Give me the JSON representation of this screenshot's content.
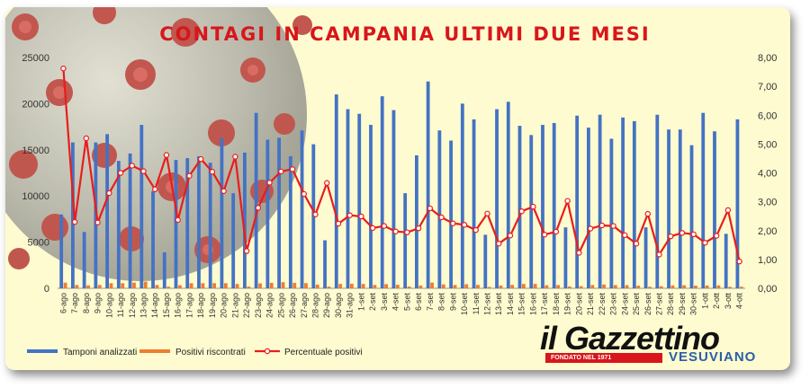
{
  "chart_data": {
    "type": "bar",
    "title": "CONTAGI IN CAMPANIA ULTIMI DUE MESI",
    "categories": [
      "6-ago",
      "7-ago",
      "8-ago",
      "9-ago",
      "10-ago",
      "11-ago",
      "12-ago",
      "13-ago",
      "14-ago",
      "15-ago",
      "16-ago",
      "17-ago",
      "18-ago",
      "19-ago",
      "20-ago",
      "21-ago",
      "22-ago",
      "23-ago",
      "24-ago",
      "25-ago",
      "26-ago",
      "27-ago",
      "28-ago",
      "29-ago",
      "30-ago",
      "31-ago",
      "1-set",
      "2-set",
      "3-set",
      "4-set",
      "5-set",
      "6-set",
      "7-set",
      "8-set",
      "9-set",
      "10-set",
      "11-set",
      "12-set",
      "13-set",
      "14-set",
      "15-set",
      "16-set",
      "17-set",
      "18-set",
      "19-set",
      "20-set",
      "21-set",
      "22-set",
      "23-set",
      "24-set",
      "25-set",
      "26-set",
      "27-set",
      "28-set",
      "29-set",
      "30-set",
      "1-ott",
      "2-ott",
      "3-ott",
      "4-ott"
    ],
    "y_left": {
      "min": 0,
      "max": 25000,
      "ticks": [
        "0",
        "5000",
        "10000",
        "15000",
        "20000",
        "25000"
      ]
    },
    "y_right": {
      "min": 0,
      "max": 8,
      "ticks": [
        "0,00",
        "1,00",
        "2,00",
        "3,00",
        "4,00",
        "5,00",
        "6,00",
        "7,00",
        "8,00"
      ]
    },
    "series": [
      {
        "name": "Tamponi analizzati",
        "type": "bar",
        "axis": "left",
        "color": "#4472c4",
        "values": [
          8000,
          15800,
          6100,
          15800,
          16700,
          13800,
          14600,
          17700,
          10500,
          3900,
          13900,
          14100,
          14300,
          13600,
          16300,
          10300,
          14700,
          19000,
          16100,
          16300,
          14300,
          17100,
          15600,
          5200,
          21000,
          19400,
          18900,
          17700,
          20800,
          19300,
          10300,
          14400,
          22400,
          17100,
          16000,
          20000,
          18300,
          5800,
          19400,
          20200,
          17600,
          16600,
          17700,
          17900,
          6600,
          18700,
          17400,
          18800,
          16200,
          18500,
          18100,
          6600,
          18800,
          17200,
          17200,
          15500,
          19000,
          17000,
          5900,
          18300
        ]
      },
      {
        "name": "Positivi riscontrati",
        "type": "bar",
        "axis": "left",
        "color": "#ed7d31",
        "values": [
          610,
          360,
          320,
          360,
          550,
          550,
          620,
          720,
          360,
          180,
          330,
          550,
          550,
          550,
          550,
          470,
          190,
          530,
          590,
          660,
          590,
          560,
          400,
          190,
          470,
          490,
          470,
          370,
          450,
          380,
          200,
          300,
          620,
          420,
          360,
          440,
          370,
          150,
          300,
          370,
          470,
          470,
          330,
          350,
          200,
          230,
          360,
          410,
          350,
          340,
          280,
          170,
          220,
          310,
          330,
          290,
          300,
          310,
          160,
          170
        ]
      },
      {
        "name": "Percentuale positivi",
        "type": "line",
        "axis": "right",
        "color": "#e81d1d",
        "values": [
          7.62,
          2.3,
          5.2,
          2.28,
          3.3,
          4.0,
          4.25,
          4.06,
          3.43,
          4.62,
          2.37,
          3.9,
          4.48,
          4.04,
          3.37,
          4.56,
          1.29,
          2.79,
          3.66,
          4.05,
          4.13,
          3.27,
          2.56,
          3.65,
          2.24,
          2.53,
          2.49,
          2.09,
          2.16,
          1.97,
          1.94,
          2.08,
          2.77,
          2.46,
          2.25,
          2.2,
          2.02,
          2.59,
          1.55,
          1.83,
          2.67,
          2.83,
          1.86,
          1.96,
          3.03,
          1.23,
          2.07,
          2.18,
          2.16,
          1.84,
          1.55,
          2.58,
          1.17,
          1.8,
          1.92,
          1.87,
          1.58,
          1.82,
          2.71,
          0.93
        ]
      }
    ],
    "legend_position": "bottom-left",
    "grid": false
  },
  "branding": {
    "logo_word": "il Gazzettino",
    "logo_tagline": "FONDATO NEL 1971",
    "logo_sub": "VESUVIANO"
  }
}
